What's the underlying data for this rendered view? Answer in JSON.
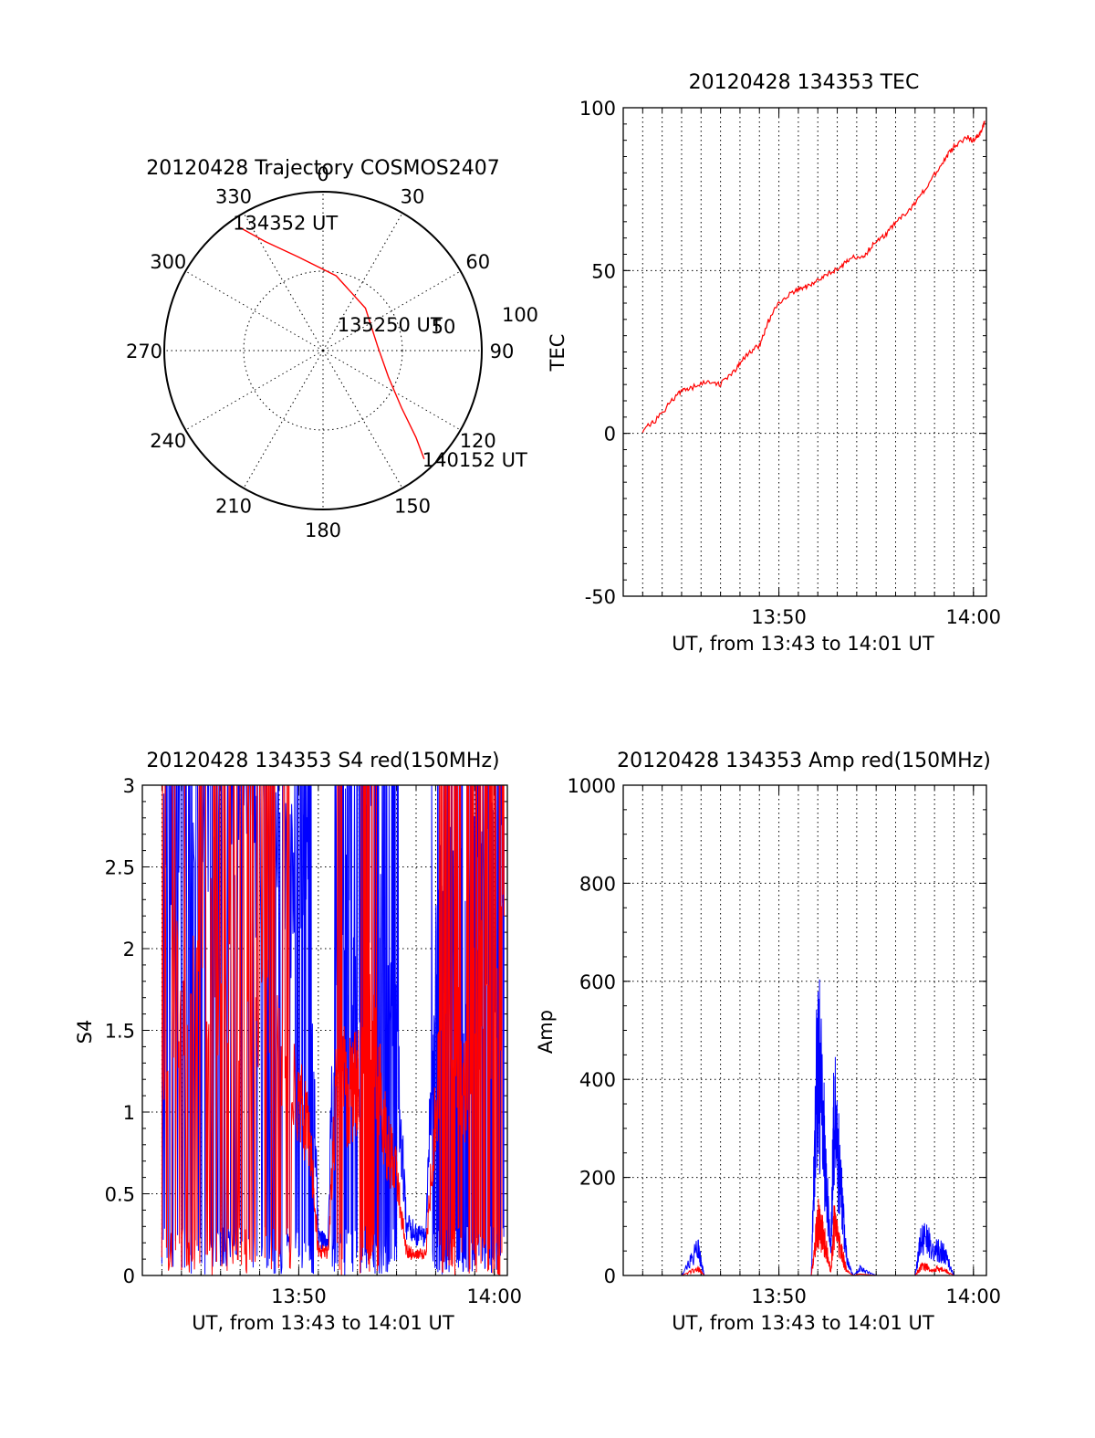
{
  "chart_data": [
    {
      "id": "trajectory",
      "type": "polar",
      "title": "20120428 Trajectory COSMOS2407",
      "azimuth_labels": [
        "0",
        "30",
        "60",
        "90",
        "120",
        "150",
        "180",
        "210",
        "240",
        "270",
        "300",
        "330"
      ],
      "radial_labels": [
        "50",
        "100"
      ],
      "grid": true,
      "series": [
        {
          "color": "#ff0000",
          "points": [
            {
              "az": 326,
              "el": 6
            },
            {
              "az": 332,
              "el": 20
            },
            {
              "az": 345,
              "el": 35
            },
            {
              "az": 10,
              "el": 47
            },
            {
              "az": 45,
              "el": 56
            },
            {
              "az": 85,
              "el": 59
            },
            {
              "az": 112,
              "el": 50
            },
            {
              "az": 126,
              "el": 35
            },
            {
              "az": 133,
              "el": 18
            },
            {
              "az": 137,
              "el": 6
            }
          ]
        }
      ],
      "annotations": [
        {
          "text": "134352 UT",
          "az": 326,
          "el": 6
        },
        {
          "text": "135250 UT",
          "az": 85,
          "el": 59
        },
        {
          "text": "140152 UT",
          "az": 137,
          "el": 6
        }
      ]
    },
    {
      "id": "tec",
      "type": "line",
      "title": "20120428 134353 TEC",
      "xlabel": "UT, from 13:43 to 14:01 UT",
      "ylabel": "TEC",
      "xlim": [
        "13:42:00",
        "14:00:40"
      ],
      "ylim": [
        -50,
        100
      ],
      "yticks": [
        -50,
        0,
        50,
        100
      ],
      "xticks": [
        "13:50",
        "14:00"
      ],
      "grid": true,
      "series": [
        {
          "color": "#ff0000",
          "x": [
            "13:43:00",
            "13:43:40",
            "13:44:30",
            "13:45:00",
            "13:45:30",
            "13:46:20",
            "13:47:00",
            "13:47:50",
            "13:48:20",
            "13:49:00",
            "13:49:30",
            "13:50:00",
            "13:50:50",
            "13:51:20",
            "13:51:50",
            "13:52:30",
            "13:53:10",
            "13:53:40",
            "13:54:20",
            "13:54:50",
            "13:55:30",
            "13:56:00",
            "13:56:40",
            "13:57:10",
            "13:57:50",
            "13:58:30",
            "13:59:00",
            "13:59:40",
            "14:00:00",
            "14:00:20",
            "14:00:35"
          ],
          "y": [
            1,
            4,
            10,
            13,
            14,
            16,
            15,
            20,
            24,
            27,
            35,
            40,
            44,
            45,
            46,
            49,
            51,
            54,
            54,
            58,
            61,
            65,
            68,
            72,
            78,
            84,
            88,
            91,
            90,
            92,
            96
          ]
        }
      ]
    },
    {
      "id": "s4",
      "type": "line",
      "title": "20120428 134353 S4 red(150MHz)",
      "xlabel": "UT, from 13:43 to 14:01 UT",
      "ylabel": "S4",
      "xlim": [
        "13:42:00",
        "14:00:40"
      ],
      "ylim": [
        0,
        3
      ],
      "yticks": [
        "0",
        "0.5",
        "1",
        "1.5",
        "2",
        "2.5",
        "3"
      ],
      "xticks": [
        "13:50",
        "14:00"
      ],
      "grid": true,
      "series": [
        {
          "color": "#0000ff",
          "x": [
            "13:43:00",
            "13:44:00",
            "13:45:00",
            "13:46:00",
            "13:47:00",
            "13:48:00",
            "13:49:00",
            "13:50:00",
            "13:50:30",
            "13:51:00",
            "13:51:30",
            "13:52:00",
            "13:52:30",
            "13:53:00",
            "13:53:30",
            "13:54:00",
            "13:54:30",
            "13:55:00",
            "13:55:30",
            "13:56:00",
            "13:56:30",
            "13:57:00",
            "13:57:30",
            "13:58:00",
            "13:58:30",
            "13:59:00",
            "13:59:30",
            "14:00:00",
            "14:00:30"
          ],
          "y": [
            3.0,
            3.0,
            3.0,
            3.0,
            2.9,
            2.7,
            2.6,
            2.4,
            2.2,
            0.22,
            0.2,
            2.7,
            2.4,
            1.5,
            2.6,
            2.5,
            1.7,
            1.4,
            0.3,
            0.25,
            0.22,
            1.9,
            2.4,
            2.2,
            1.9,
            2.3,
            2.5,
            2.2,
            2.8
          ]
        },
        {
          "color": "#ff0000",
          "x": [
            "13:43:00",
            "13:44:00",
            "13:45:00",
            "13:46:00",
            "13:47:00",
            "13:48:00",
            "13:49:00",
            "13:50:00",
            "13:50:30",
            "13:51:00",
            "13:51:30",
            "13:52:00",
            "13:52:30",
            "13:53:00",
            "13:53:30",
            "13:54:00",
            "13:54:30",
            "13:55:00",
            "13:55:30",
            "13:56:00",
            "13:56:30",
            "13:57:00",
            "13:57:30",
            "13:58:00",
            "13:58:30",
            "13:59:00",
            "13:59:30",
            "14:00:00",
            "14:00:30"
          ],
          "y": [
            1.5,
            1.8,
            2.0,
            1.9,
            1.7,
            1.5,
            1.4,
            1.1,
            0.9,
            0.15,
            0.14,
            1.3,
            1.1,
            1.2,
            1.5,
            1.3,
            0.8,
            0.6,
            0.15,
            0.12,
            0.14,
            1.0,
            1.6,
            1.5,
            1.1,
            1.6,
            1.9,
            1.5,
            2.2
          ]
        }
      ]
    },
    {
      "id": "amp",
      "type": "line",
      "title": "20120428 134353 Amp red(150MHz)",
      "xlabel": "UT, from 13:43 to 14:01 UT",
      "ylabel": "Amp",
      "xlim": [
        "13:42:00",
        "14:00:40"
      ],
      "ylim": [
        0,
        1000
      ],
      "yticks": [
        "0",
        "200",
        "400",
        "600",
        "800",
        "1000"
      ],
      "xticks": [
        "13:50",
        "14:00"
      ],
      "grid": true,
      "series": [
        {
          "color": "#0000ff",
          "x": [
            "13:43:00",
            "13:45:00",
            "13:45:50",
            "13:46:00",
            "13:46:10",
            "13:48:00",
            "13:50:00",
            "13:51:40",
            "13:52:00",
            "13:52:20",
            "13:52:40",
            "13:52:50",
            "13:53:10",
            "13:53:30",
            "13:53:50",
            "13:54:10",
            "13:55:00",
            "13:56:00",
            "13:57:00",
            "13:57:20",
            "13:58:00",
            "13:58:30",
            "13:59:00",
            "14:00:00",
            "14:00:35"
          ],
          "y": [
            0,
            0,
            60,
            30,
            0,
            0,
            0,
            0,
            500,
            300,
            40,
            380,
            200,
            30,
            0,
            15,
            0,
            0,
            0,
            90,
            60,
            50,
            0,
            0,
            0
          ]
        },
        {
          "color": "#ff0000",
          "x": [
            "13:43:00",
            "13:45:00",
            "13:45:50",
            "13:46:00",
            "13:46:10",
            "13:48:00",
            "13:50:00",
            "13:51:40",
            "13:52:00",
            "13:52:20",
            "13:52:40",
            "13:52:50",
            "13:53:10",
            "13:53:30",
            "13:53:50",
            "13:54:10",
            "13:55:00",
            "13:56:00",
            "13:57:00",
            "13:57:20",
            "13:58:00",
            "13:58:30",
            "13:59:00",
            "14:00:00",
            "14:00:35"
          ],
          "y": [
            0,
            0,
            15,
            8,
            0,
            0,
            0,
            0,
            120,
            80,
            10,
            110,
            60,
            8,
            0,
            3,
            0,
            0,
            0,
            20,
            15,
            12,
            0,
            0,
            0
          ]
        }
      ]
    }
  ]
}
